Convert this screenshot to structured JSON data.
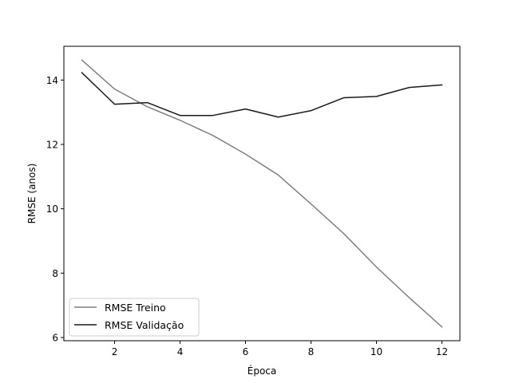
{
  "chart_data": {
    "type": "line",
    "title": "",
    "xlabel": "Época",
    "ylabel": "RMSE (anos)",
    "xlim": [
      0.45,
      12.55
    ],
    "ylim": [
      5.9,
      15.05
    ],
    "xticks": [
      2,
      4,
      6,
      8,
      10,
      12
    ],
    "yticks": [
      6,
      8,
      10,
      12,
      14
    ],
    "grid": false,
    "legend_position": "lower-left",
    "x": [
      1,
      2,
      3,
      4,
      5,
      6,
      7,
      8,
      9,
      10,
      11,
      12
    ],
    "series": [
      {
        "name": "RMSE Treino",
        "color": "#808080",
        "values": [
          14.62,
          13.72,
          13.17,
          12.75,
          12.28,
          11.7,
          11.05,
          10.15,
          9.23,
          8.19,
          7.24,
          6.33
        ]
      },
      {
        "name": "RMSE Validação",
        "color": "#1a1a1a",
        "values": [
          14.23,
          13.25,
          13.3,
          12.9,
          12.9,
          13.1,
          12.85,
          13.05,
          13.45,
          13.49,
          13.77,
          13.85
        ]
      }
    ]
  }
}
